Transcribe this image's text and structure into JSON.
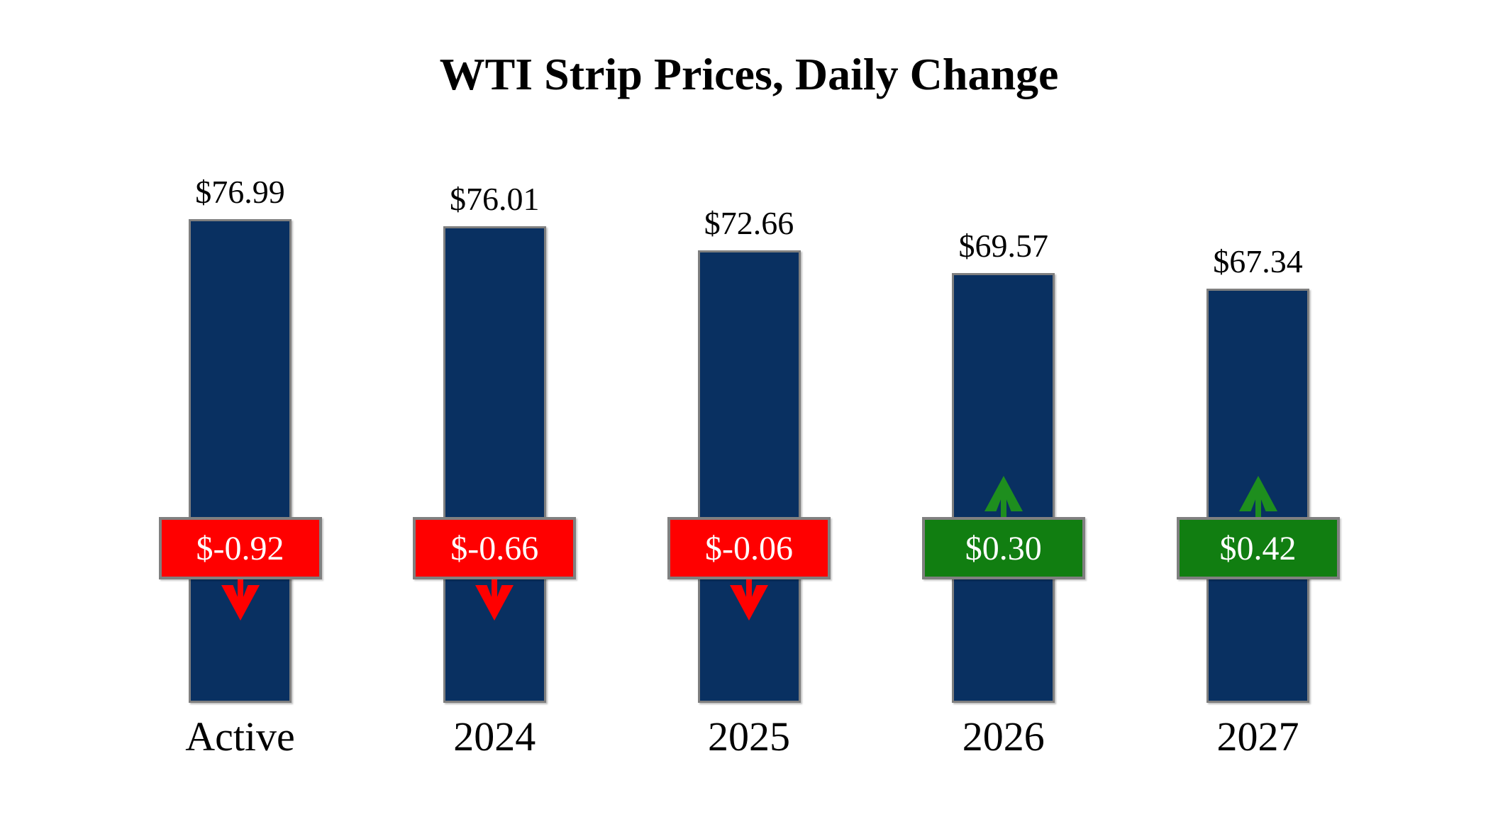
{
  "chart_data": {
    "type": "bar",
    "title": "WTI Strip Prices, Daily Change",
    "categories": [
      "Active",
      "2024",
      "2025",
      "2026",
      "2027"
    ],
    "series": [
      {
        "name": "strip_price",
        "values": [
          76.99,
          76.01,
          72.66,
          69.57,
          67.34
        ],
        "labels": [
          "$76.99",
          "$76.01",
          "$72.66",
          "$69.57",
          "$67.34"
        ]
      },
      {
        "name": "daily_change",
        "values": [
          -0.92,
          -0.66,
          -0.06,
          0.3,
          0.42
        ],
        "labels": [
          "$-0.92",
          "$-0.66",
          "$-0.06",
          "$0.30",
          "$0.42"
        ]
      }
    ],
    "xlabel": "",
    "ylabel": "",
    "ylim": [
      10,
      80
    ],
    "axis_visible": false,
    "grid": false,
    "legend_position": "none",
    "colors": {
      "bar_fill": "#093061",
      "bar_border": "#7f7f7f",
      "badge_negative": "#FF0000",
      "badge_positive": "#117E11",
      "arrow_negative": "#FF0000",
      "arrow_positive": "#1E8E1E",
      "badge_border": "#808080",
      "badge_text": "#FFFFFF",
      "label_text": "#000000"
    }
  }
}
